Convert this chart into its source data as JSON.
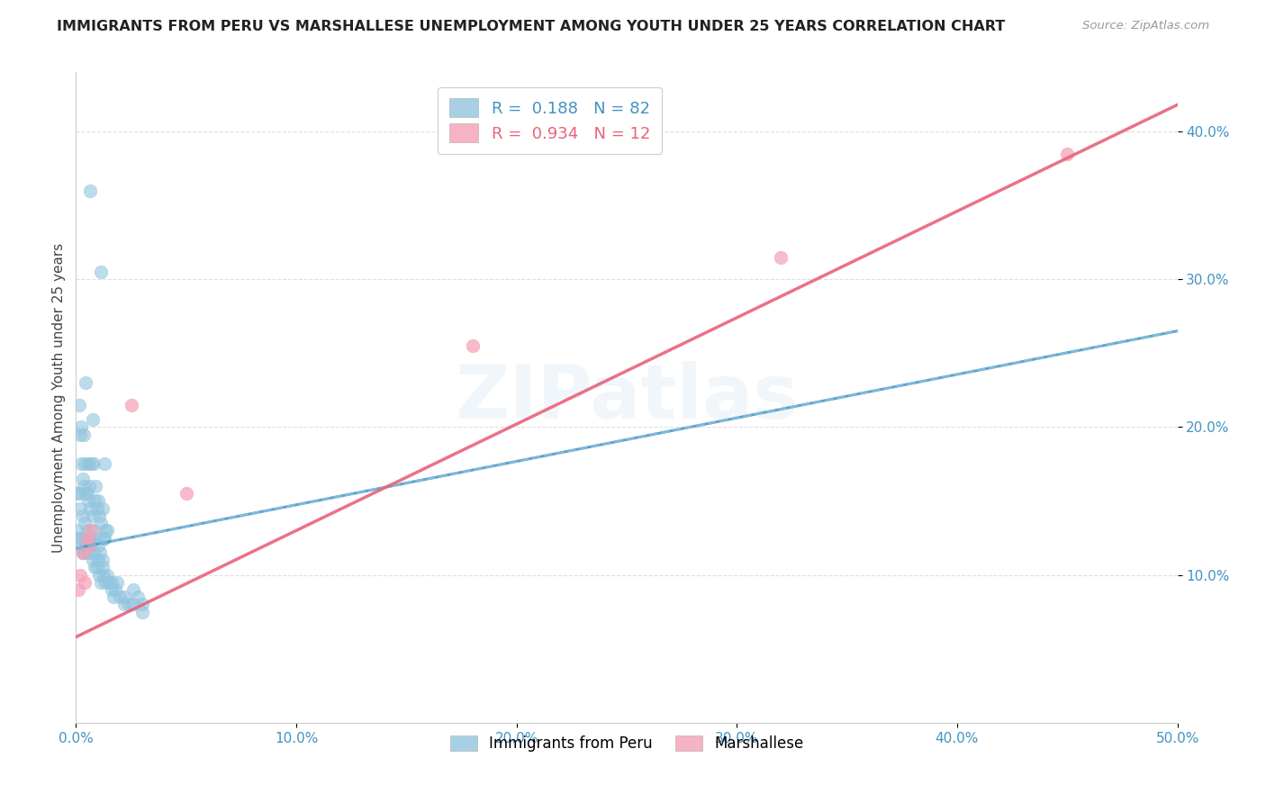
{
  "title": "IMMIGRANTS FROM PERU VS MARSHALLESE UNEMPLOYMENT AMONG YOUTH UNDER 25 YEARS CORRELATION CHART",
  "source": "Source: ZipAtlas.com",
  "ylabel": "Unemployment Among Youth under 25 years",
  "xlim": [
    0.0,
    0.5
  ],
  "ylim": [
    0.0,
    0.44
  ],
  "xtick_vals": [
    0.0,
    0.1,
    0.2,
    0.3,
    0.4,
    0.5
  ],
  "xtick_labels": [
    "0.0%",
    "10.0%",
    "20.0%",
    "30.0%",
    "40.0%",
    "50.0%"
  ],
  "ytick_vals": [
    0.1,
    0.2,
    0.3,
    0.4
  ],
  "ytick_labels": [
    "10.0%",
    "20.0%",
    "30.0%",
    "40.0%"
  ],
  "peru_color": "#92c5de",
  "peru_edge_color": "#92c5de",
  "marsh_color": "#f4a0b5",
  "marsh_edge_color": "#f4a0b5",
  "peru_line_color": "#4393c3",
  "peru_line_style": "-",
  "peru_dash_color": "#92c5de",
  "marsh_line_color": "#e8637a",
  "marsh_line_style": "-",
  "tick_color": "#4393c3",
  "grid_color": "#d8d8d8",
  "legend_R_label1": "R =  0.188   N = 82",
  "legend_R_label2": "R =  0.934   N = 12",
  "legend_label1": "Immigrants from Peru",
  "legend_label2": "Marshallese",
  "watermark": "ZIPatlas",
  "peru_x": [
    0.0065,
    0.0115,
    0.0015,
    0.0045,
    0.0025,
    0.0075,
    0.0035,
    0.0055,
    0.002,
    0.008,
    0.003,
    0.006,
    0.001,
    0.004,
    0.007,
    0.009,
    0.005,
    0.01,
    0.012,
    0.013,
    0.0015,
    0.0025,
    0.0035,
    0.0045,
    0.0055,
    0.0065,
    0.0075,
    0.0085,
    0.0095,
    0.0105,
    0.0115,
    0.0125,
    0.0135,
    0.002,
    0.003,
    0.004,
    0.005,
    0.006,
    0.007,
    0.008,
    0.009,
    0.01,
    0.011,
    0.012,
    0.013,
    0.014,
    0.0005,
    0.0015,
    0.0025,
    0.0035,
    0.0045,
    0.0055,
    0.0065,
    0.0075,
    0.0085,
    0.0095,
    0.0105,
    0.0115,
    0.0125,
    0.0135,
    0.015,
    0.016,
    0.017,
    0.0185,
    0.02,
    0.022,
    0.024,
    0.026,
    0.028,
    0.03,
    0.002,
    0.003,
    0.005,
    0.008,
    0.01,
    0.012,
    0.014,
    0.016,
    0.018,
    0.022,
    0.026,
    0.03
  ],
  "peru_y": [
    0.36,
    0.305,
    0.215,
    0.23,
    0.2,
    0.205,
    0.195,
    0.175,
    0.195,
    0.175,
    0.165,
    0.16,
    0.155,
    0.175,
    0.175,
    0.16,
    0.155,
    0.15,
    0.145,
    0.175,
    0.155,
    0.175,
    0.16,
    0.155,
    0.15,
    0.145,
    0.14,
    0.15,
    0.145,
    0.14,
    0.135,
    0.125,
    0.13,
    0.145,
    0.14,
    0.135,
    0.13,
    0.125,
    0.125,
    0.13,
    0.125,
    0.12,
    0.115,
    0.11,
    0.125,
    0.13,
    0.13,
    0.125,
    0.12,
    0.115,
    0.125,
    0.115,
    0.12,
    0.11,
    0.105,
    0.105,
    0.1,
    0.095,
    0.1,
    0.095,
    0.095,
    0.09,
    0.085,
    0.095,
    0.085,
    0.08,
    0.08,
    0.09,
    0.085,
    0.08,
    0.125,
    0.115,
    0.12,
    0.115,
    0.11,
    0.105,
    0.1,
    0.095,
    0.09,
    0.085,
    0.08,
    0.075
  ],
  "marsh_x": [
    0.001,
    0.002,
    0.003,
    0.004,
    0.005,
    0.006,
    0.007,
    0.025,
    0.05,
    0.18,
    0.32,
    0.45
  ],
  "marsh_y": [
    0.09,
    0.1,
    0.115,
    0.095,
    0.125,
    0.12,
    0.13,
    0.215,
    0.155,
    0.255,
    0.315,
    0.385
  ],
  "peru_line_x": [
    0.0,
    0.5
  ],
  "peru_line_y": [
    0.118,
    0.265
  ],
  "marsh_line_x": [
    0.0,
    0.5
  ],
  "marsh_line_y": [
    0.058,
    0.418
  ]
}
